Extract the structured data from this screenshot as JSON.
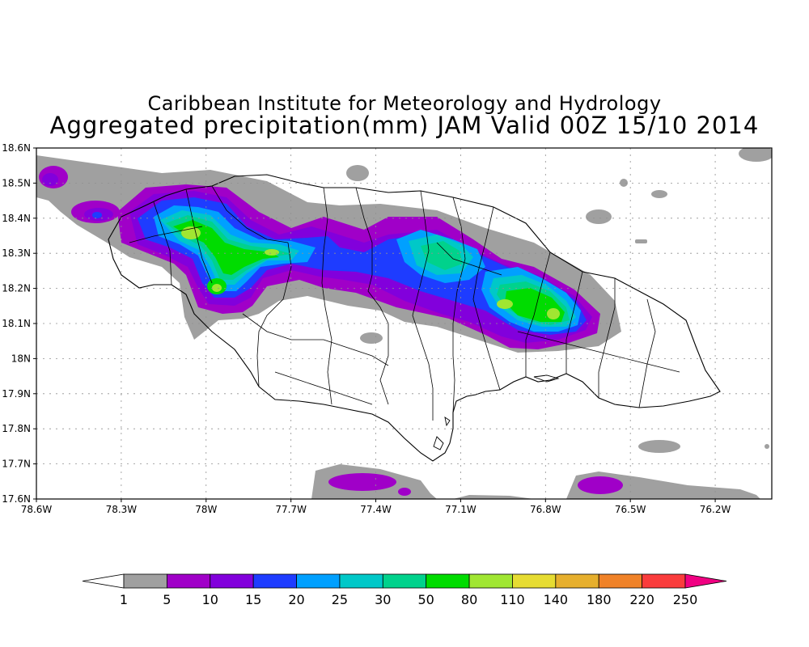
{
  "titles": {
    "line1": "Caribbean Institute for Meteorology and Hydrology",
    "line2": "Aggregated precipitation(mm) JAM Valid 00Z 15/10 2014"
  },
  "map": {
    "lon_range": [
      -78.6,
      -76.0
    ],
    "lat_range": [
      17.6,
      18.6
    ],
    "lon_ticks": [
      {
        "value": -78.6,
        "label": "78.6W"
      },
      {
        "value": -78.3,
        "label": "78.3W"
      },
      {
        "value": -78.0,
        "label": "78W"
      },
      {
        "value": -77.7,
        "label": "77.7W"
      },
      {
        "value": -77.4,
        "label": "77.4W"
      },
      {
        "value": -77.1,
        "label": "77.1W"
      },
      {
        "value": -76.8,
        "label": "76.8W"
      },
      {
        "value": -76.5,
        "label": "76.5W"
      },
      {
        "value": -76.2,
        "label": "76.2W"
      }
    ],
    "lat_ticks": [
      {
        "value": 18.6,
        "label": "18.6N"
      },
      {
        "value": 18.5,
        "label": "18.5N"
      },
      {
        "value": 18.4,
        "label": "18.4N"
      },
      {
        "value": 18.3,
        "label": "18.3N"
      },
      {
        "value": 18.2,
        "label": "18.2N"
      },
      {
        "value": 18.1,
        "label": "18.1N"
      },
      {
        "value": 18.0,
        "label": "18N"
      },
      {
        "value": 17.9,
        "label": "17.9N"
      },
      {
        "value": 17.8,
        "label": "17.8N"
      },
      {
        "value": 17.7,
        "label": "17.7N"
      },
      {
        "value": 17.6,
        "label": "17.6N"
      }
    ],
    "grid": true
  },
  "colorbar": {
    "labels": [
      "1",
      "5",
      "10",
      "15",
      "20",
      "25",
      "30",
      "50",
      "80",
      "110",
      "140",
      "180",
      "220",
      "250"
    ],
    "colors": [
      "#a0a0a0",
      "#a000c8",
      "#8200dc",
      "#1e3cff",
      "#00a0ff",
      "#00c8c8",
      "#00d28c",
      "#00dc00",
      "#a0e632",
      "#e6dc32",
      "#e6af2d",
      "#f08228",
      "#fa3c3c",
      "#f00082"
    ]
  }
}
